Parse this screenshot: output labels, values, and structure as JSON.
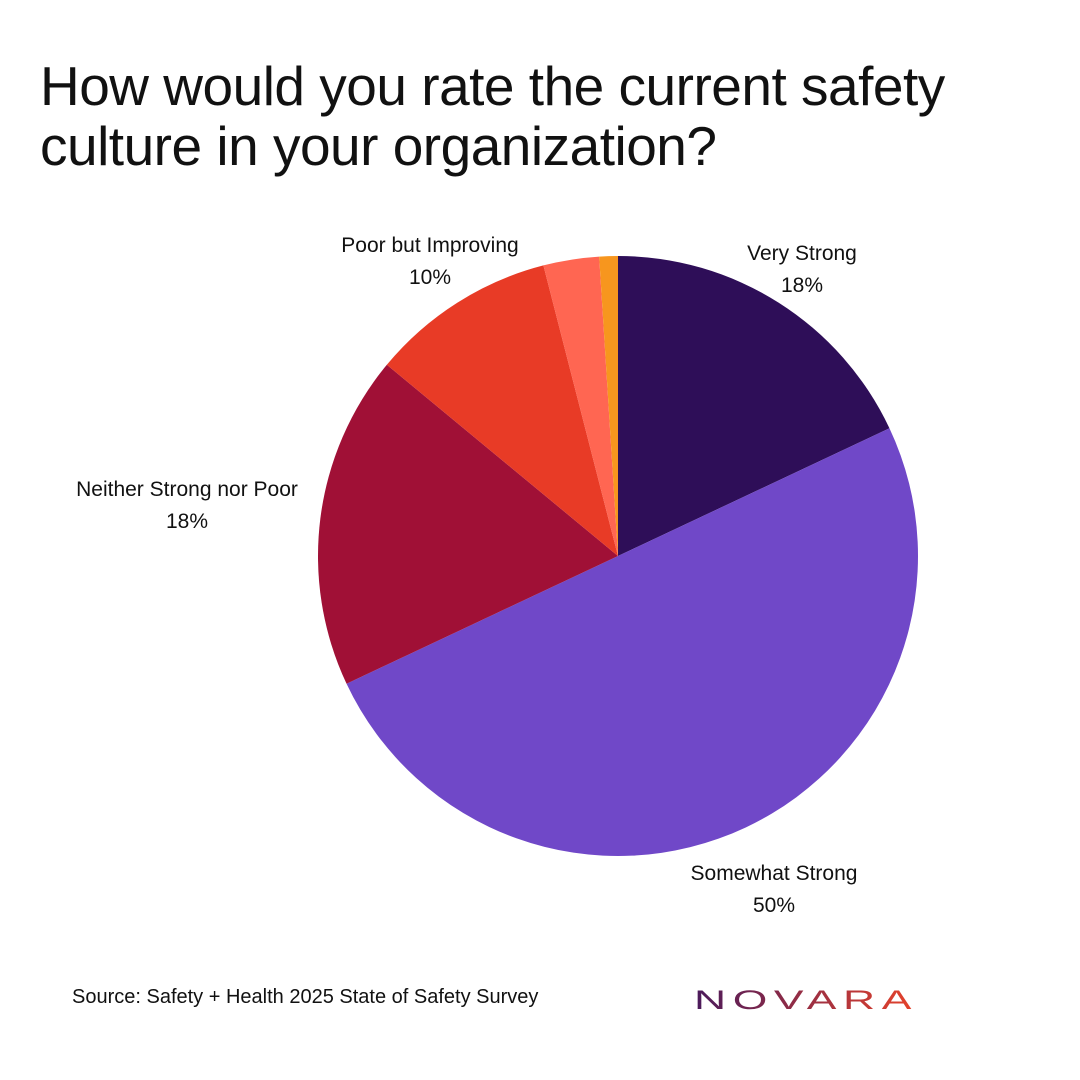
{
  "title": "How would you rate the current safety culture in your organization?",
  "source": "Source: Safety + Health 2025 State of Safety Survey",
  "brand": {
    "name": "NOVARA",
    "gradient_start": "#4a1a5c",
    "gradient_end": "#e8432a"
  },
  "chart_data": {
    "type": "pie",
    "slices": [
      {
        "name": "Very Strong",
        "value": 18,
        "value_label": "18%",
        "color": "#2e0e58",
        "show_label": true
      },
      {
        "name": "Somewhat Strong",
        "value": 50,
        "value_label": "50%",
        "color": "#7048c8",
        "show_label": true
      },
      {
        "name": "Neither Strong nor Poor",
        "value": 18,
        "value_label": "18%",
        "color": "#a01036",
        "show_label": true
      },
      {
        "name": "Poor but Improving",
        "value": 10,
        "value_label": "10%",
        "color": "#e83b26",
        "show_label": true
      },
      {
        "name": "",
        "value": 3,
        "value_label": "",
        "color": "#ff6652",
        "show_label": false
      },
      {
        "name": "",
        "value": 1,
        "value_label": "",
        "color": "#f7961e",
        "show_label": false
      }
    ]
  }
}
